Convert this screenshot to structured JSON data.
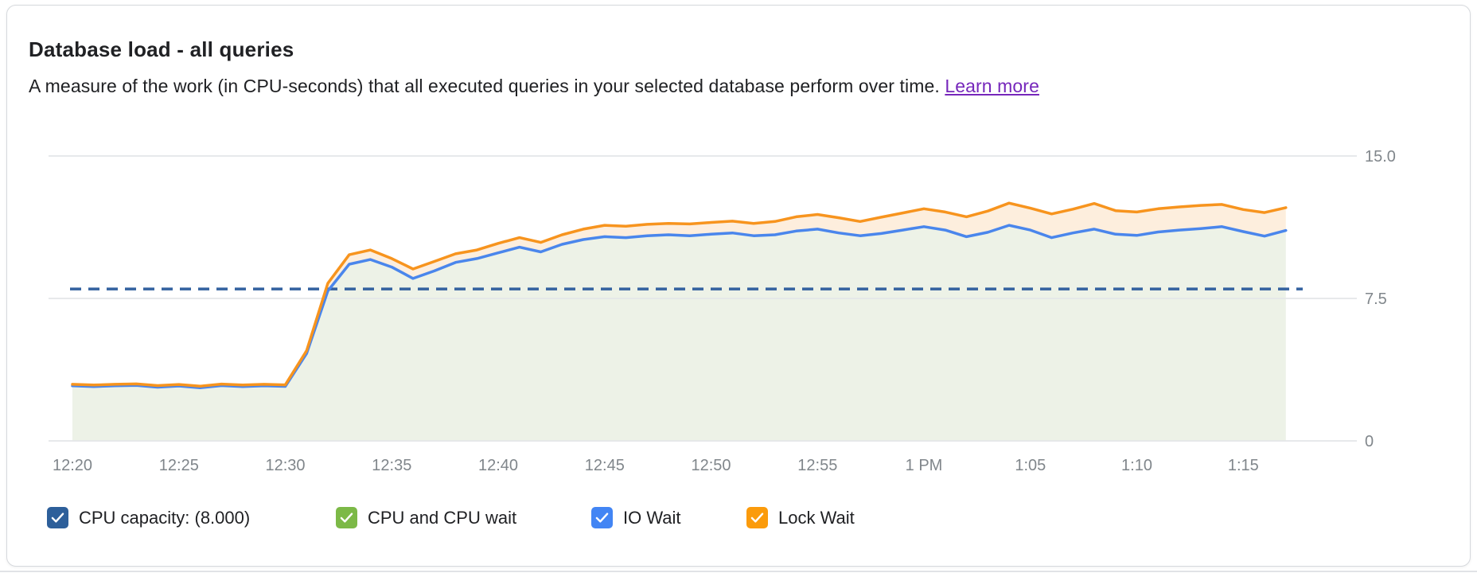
{
  "card": {
    "title": "Database load - all queries",
    "subtitle": "A measure of the work (in CPU-seconds) that all executed queries in your selected database perform over time.",
    "learn_more_label": "Learn more"
  },
  "colors": {
    "link_purple": "#7627bb",
    "capacity_checkbox": "#2d5f9a",
    "cpu_checkbox_green": "#7cb947",
    "io_checkbox_blue": "#4285f4",
    "lock_checkbox_orange": "#fb9b0b",
    "line_blue": "#4a86ec",
    "line_orange": "#f7941e",
    "fill_green": "#edf2e7",
    "fill_orange_band": "#fdeedd",
    "capacity_dash": "#33619f",
    "gridline": "#e5e7e9",
    "tick_text": "#80868b"
  },
  "legend": {
    "items": [
      {
        "label": "CPU capacity: (8.000)",
        "color": "#2d5f9a",
        "checked": true
      },
      {
        "label": "CPU and CPU wait",
        "color": "#7cb947",
        "checked": true
      },
      {
        "label": "IO Wait",
        "color": "#4285f4",
        "checked": true
      },
      {
        "label": "Lock Wait",
        "color": "#fb9b0b",
        "checked": true
      }
    ]
  },
  "chart_data": {
    "type": "area",
    "title": "Database load - all queries",
    "x_unit": "time of day, minutes after 12:20 PM, one sample per minute",
    "x_minutes_start": 0,
    "x_minutes_end": 57,
    "x_tick_minutes": [
      0,
      5,
      10,
      15,
      20,
      25,
      30,
      35,
      40,
      45,
      50,
      55
    ],
    "x_tick_labels": [
      "12:20",
      "12:25",
      "12:30",
      "12:35",
      "12:40",
      "12:45",
      "12:50",
      "12:55",
      "1 PM",
      "1:05",
      "1:10",
      "1:15"
    ],
    "ylim": [
      0,
      15
    ],
    "y_ticks": [
      0,
      7.5,
      15
    ],
    "y_tick_labels": [
      "0",
      "7.5",
      "15.0"
    ],
    "grid": true,
    "legend_position": "bottom",
    "capacity_line": {
      "name": "CPU capacity",
      "value": 8.0,
      "style": "dashed",
      "color": "#33619f"
    },
    "note": "Stacked area chart: light-green area reaches up to the blue line (CPU and CPU wait + IO Wait cumulative top); light-orange band between blue and orange lines is Lock Wait; orange line is total database load.",
    "series": [
      {
        "name": "IO Wait (cumulative stack top, blue line)",
        "line_color": "#4a86ec",
        "fill_color": "#edf2e7",
        "values": [
          2.9,
          2.86,
          2.9,
          2.92,
          2.83,
          2.89,
          2.8,
          2.91,
          2.86,
          2.9,
          2.87,
          4.6,
          7.9,
          9.3,
          9.55,
          9.15,
          8.55,
          8.95,
          9.4,
          9.6,
          9.9,
          10.2,
          9.95,
          10.35,
          10.6,
          10.75,
          10.7,
          10.8,
          10.85,
          10.8,
          10.88,
          10.95,
          10.8,
          10.85,
          11.05,
          11.15,
          10.95,
          10.8,
          10.92,
          11.1,
          11.28,
          11.1,
          10.75,
          10.98,
          11.35,
          11.1,
          10.7,
          10.95,
          11.15,
          10.88,
          10.82,
          11.0,
          11.1,
          11.18,
          11.28,
          11.02,
          10.78,
          11.08
        ]
      },
      {
        "name": "Lock Wait (cumulative stack top = total load, orange line)",
        "line_color": "#f7941e",
        "fill_color": "#fdeedd",
        "values": [
          2.98,
          2.94,
          2.98,
          3.0,
          2.91,
          2.97,
          2.88,
          2.99,
          2.94,
          2.98,
          2.95,
          4.75,
          8.3,
          9.8,
          10.05,
          9.6,
          9.05,
          9.45,
          9.85,
          10.05,
          10.4,
          10.7,
          10.45,
          10.85,
          11.15,
          11.35,
          11.3,
          11.4,
          11.45,
          11.42,
          11.5,
          11.57,
          11.45,
          11.55,
          11.8,
          11.92,
          11.75,
          11.55,
          11.78,
          12.0,
          12.22,
          12.05,
          11.8,
          12.1,
          12.52,
          12.25,
          11.95,
          12.2,
          12.5,
          12.12,
          12.05,
          12.22,
          12.32,
          12.4,
          12.45,
          12.18,
          12.02,
          12.28
        ]
      }
    ]
  }
}
